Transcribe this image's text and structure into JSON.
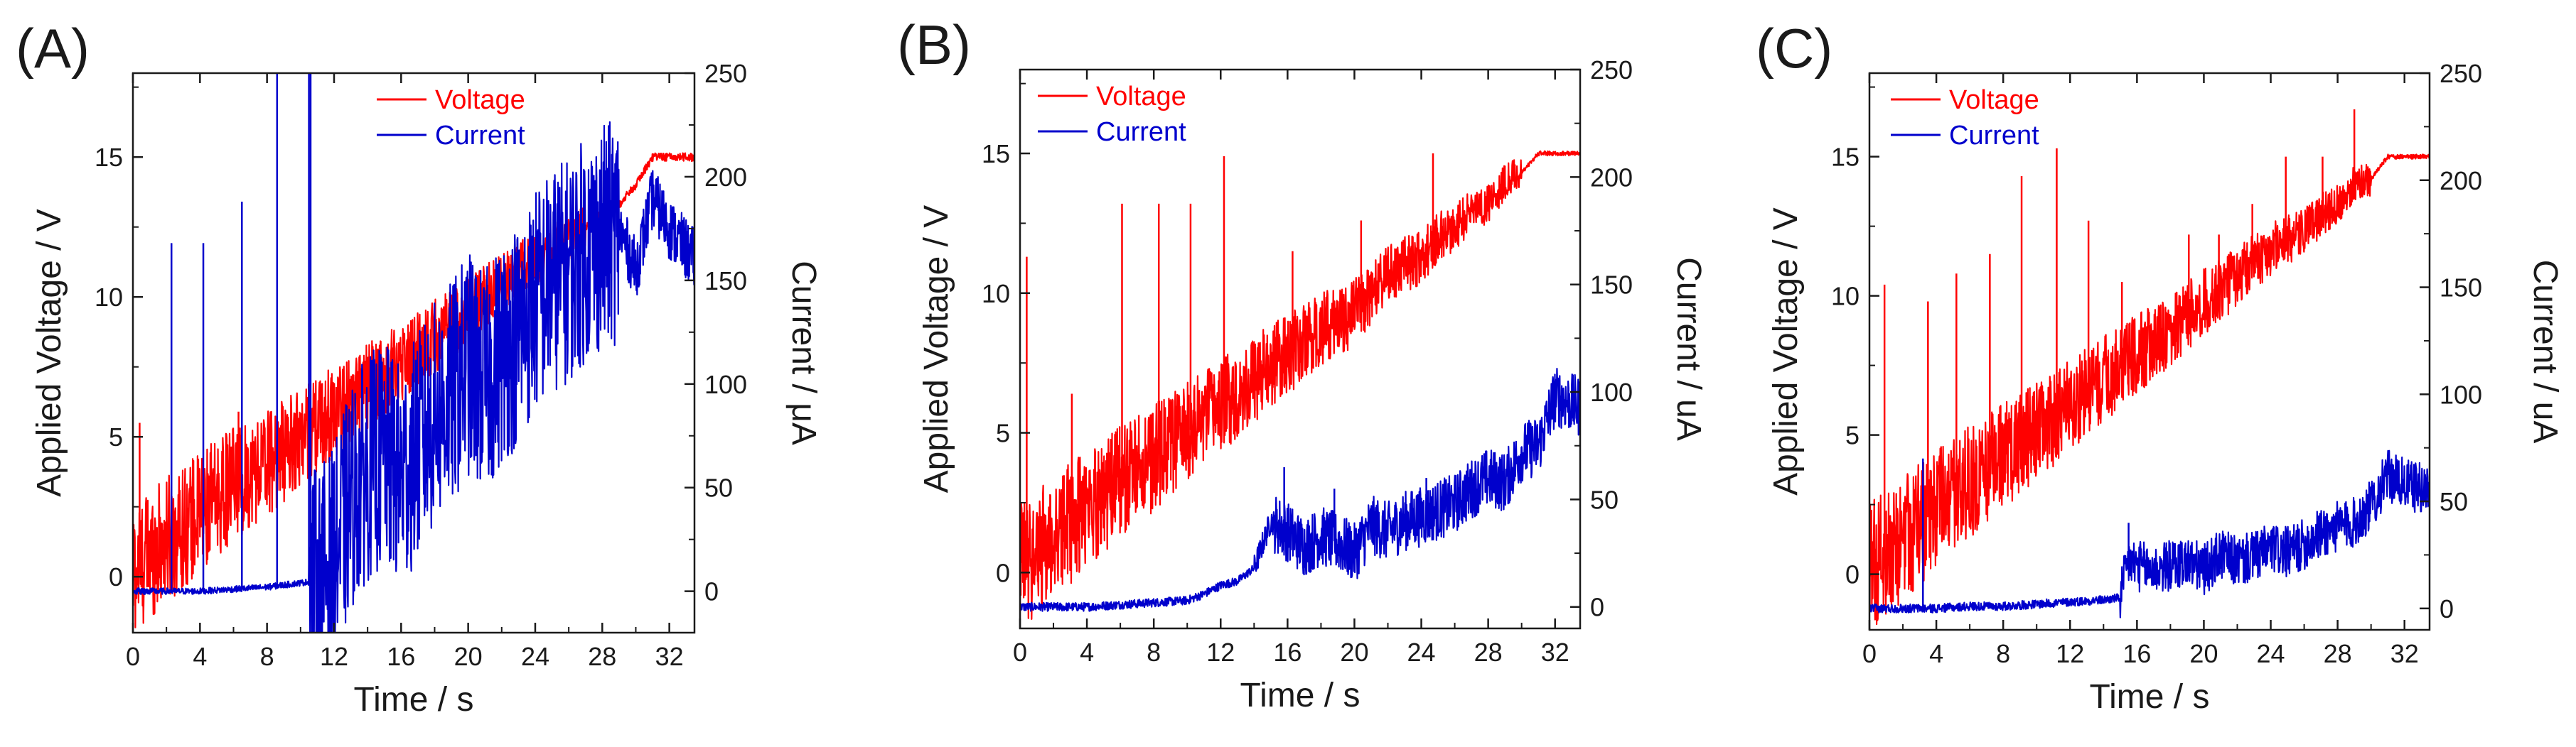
{
  "colors": {
    "voltage": "#ff0000",
    "current": "#0000cc",
    "axis": "#1a1a1a"
  },
  "chart_data": [
    {
      "panel_label": "(A)",
      "type": "line",
      "xlabel": "Time / s",
      "ylabel_left": "Applied Voltage / V",
      "ylabel_right": "Current / μA",
      "xlim": [
        0,
        33.5
      ],
      "ylim_left": [
        -2,
        18
      ],
      "ylim_right": [
        -20,
        250
      ],
      "xticks": [
        "0",
        "4",
        "8",
        "12",
        "16",
        "20",
        "24",
        "28",
        "32"
      ],
      "yticks_left": [
        "0",
        "5",
        "10",
        "15"
      ],
      "yticks_right": [
        "0",
        "50",
        "100",
        "150",
        "200",
        "250"
      ],
      "legend": [
        "Voltage",
        "Current"
      ],
      "series": [
        {
          "name": "Voltage",
          "axis": "left",
          "x": [
            0,
            1,
            2,
            3,
            4,
            5,
            6,
            7,
            8,
            9,
            10,
            11,
            12,
            13,
            14,
            15,
            16,
            17,
            18,
            19,
            20,
            21,
            22,
            23,
            24,
            25,
            26,
            27,
            28,
            29,
            30,
            31,
            32,
            33.5
          ],
          "values": [
            0.2,
            0.8,
            1.3,
            1.8,
            2.3,
            2.8,
            3.3,
            3.7,
            4.1,
            4.5,
            5,
            5.4,
            5.9,
            6.3,
            6.8,
            7.2,
            7.7,
            8.1,
            8.6,
            9,
            9.5,
            10,
            10.5,
            11,
            11.2,
            11.8,
            12,
            12.5,
            13,
            13.3,
            14,
            15,
            15,
            15
          ]
        },
        {
          "name": "Current",
          "axis": "right",
          "x": [
            0,
            2,
            4,
            6,
            8,
            9,
            10,
            11,
            12,
            13,
            14,
            15,
            16,
            17,
            18,
            19,
            20,
            21,
            22,
            23,
            24,
            25,
            26,
            27,
            28,
            29,
            30,
            31,
            32,
            33.5
          ],
          "values": [
            0,
            0,
            0,
            1,
            2,
            3,
            4,
            5,
            15,
            45,
            60,
            65,
            55,
            70,
            85,
            95,
            110,
            100,
            115,
            125,
            140,
            150,
            155,
            165,
            170,
            175,
            155,
            190,
            175,
            160
          ]
        }
      ],
      "spikes": [
        {
          "axis": "right",
          "x": 2.3,
          "value": 168
        },
        {
          "axis": "right",
          "x": 4.2,
          "value": 168
        },
        {
          "axis": "right",
          "x": 6.5,
          "value": 188
        },
        {
          "axis": "right",
          "x": 8.6,
          "value": 250
        },
        {
          "axis": "right",
          "x": 10.5,
          "value": 250
        },
        {
          "axis": "right",
          "x": 10.6,
          "value": 250
        },
        {
          "axis": "left",
          "x": 0.4,
          "value": 5.5
        },
        {
          "axis": "left",
          "x": 6.3,
          "value": 5.9
        }
      ]
    },
    {
      "panel_label": "(B)",
      "type": "line",
      "xlabel": "Time / s",
      "ylabel_left": "Applied Voltage / V",
      "ylabel_right": "Current / uA",
      "xlim": [
        0,
        33.5
      ],
      "ylim_left": [
        -2,
        18
      ],
      "ylim_right": [
        -10,
        250
      ],
      "xticks": [
        "0",
        "4",
        "8",
        "12",
        "16",
        "20",
        "24",
        "28",
        "32"
      ],
      "yticks_left": [
        "0",
        "5",
        "10",
        "15"
      ],
      "yticks_right": [
        "0",
        "50",
        "100",
        "150",
        "200",
        "250"
      ],
      "legend": [
        "Voltage",
        "Current"
      ],
      "series": [
        {
          "name": "Voltage",
          "axis": "left",
          "x": [
            0,
            1,
            2,
            3,
            4,
            5,
            6,
            7,
            8,
            9,
            10,
            11,
            12,
            13,
            14,
            15,
            16,
            17,
            18,
            19,
            20,
            21,
            22,
            23,
            24,
            25,
            26,
            27,
            28,
            29,
            30,
            31,
            32,
            33.5
          ],
          "values": [
            0.1,
            0.7,
            1.2,
            1.8,
            2.3,
            2.8,
            3.3,
            3.7,
            4.1,
            4.6,
            5,
            5.5,
            6,
            6.4,
            6.9,
            7.4,
            7.8,
            8.2,
            8.7,
            9,
            9.3,
            10,
            10.6,
            11,
            11.3,
            12,
            12.3,
            13,
            13.2,
            14,
            14.3,
            15,
            15,
            15
          ]
        },
        {
          "name": "Current",
          "axis": "right",
          "x": [
            0,
            2,
            4,
            6,
            8,
            10,
            11,
            12,
            13,
            14,
            15,
            16,
            17,
            18,
            19,
            20,
            21,
            22,
            23,
            24,
            25,
            26,
            27,
            28,
            29,
            30,
            31,
            32,
            33.5
          ],
          "values": [
            0,
            0,
            0,
            1,
            2,
            3,
            6,
            10,
            12,
            18,
            40,
            35,
            28,
            33,
            30,
            25,
            38,
            35,
            40,
            42,
            45,
            48,
            55,
            60,
            58,
            72,
            75,
            98,
            93
          ]
        }
      ],
      "spikes": [
        {
          "axis": "left",
          "x": 0.4,
          "value": 11.3
        },
        {
          "axis": "left",
          "x": 1.8,
          "value": 2.8
        },
        {
          "axis": "left",
          "x": 3.1,
          "value": 6.4
        },
        {
          "axis": "left",
          "x": 6.1,
          "value": 13.2
        },
        {
          "axis": "left",
          "x": 8.3,
          "value": 13.2
        },
        {
          "axis": "left",
          "x": 10.2,
          "value": 13.2
        },
        {
          "axis": "left",
          "x": 12.2,
          "value": 14.9
        },
        {
          "axis": "left",
          "x": 16.3,
          "value": 11.5
        },
        {
          "axis": "left",
          "x": 20.4,
          "value": 12.6
        },
        {
          "axis": "left",
          "x": 24.7,
          "value": 15
        },
        {
          "axis": "right",
          "x": 15.8,
          "value": 65
        },
        {
          "axis": "right",
          "x": 18.8,
          "value": 55
        },
        {
          "axis": "right",
          "x": 24.3,
          "value": 60
        }
      ]
    },
    {
      "panel_label": "(C)",
      "type": "line",
      "xlabel": "Time / s",
      "ylabel_left": "Applied Voltage / V",
      "ylabel_right": "Current / uA",
      "xlim": [
        0,
        33.5
      ],
      "ylim_left": [
        -2,
        18
      ],
      "ylim_right": [
        -10,
        250
      ],
      "xticks": [
        "0",
        "4",
        "8",
        "12",
        "16",
        "20",
        "24",
        "28",
        "32"
      ],
      "yticks_left": [
        "0",
        "5",
        "10",
        "15"
      ],
      "yticks_right": [
        "0",
        "50",
        "100",
        "150",
        "200",
        "250"
      ],
      "legend": [
        "Voltage",
        "Current"
      ],
      "series": [
        {
          "name": "Voltage",
          "axis": "left",
          "x": [
            0,
            1,
            2,
            3,
            4,
            5,
            6,
            7,
            8,
            9,
            10,
            11,
            12,
            13,
            14,
            15,
            16,
            17,
            18,
            19,
            20,
            21,
            22,
            23,
            24,
            25,
            26,
            27,
            28,
            29,
            30,
            31,
            32,
            33.5
          ],
          "values": [
            0.1,
            0.8,
            1.3,
            1.8,
            2.3,
            2.8,
            3.3,
            3.8,
            4.2,
            4.7,
            5.1,
            5.6,
            6.1,
            6.5,
            7,
            7.4,
            7.9,
            8.3,
            8.8,
            9.3,
            9.8,
            10.2,
            10.7,
            11.2,
            11.7,
            12,
            12.3,
            12.9,
            13.3,
            14,
            14.2,
            15,
            15,
            15
          ]
        },
        {
          "name": "Current",
          "axis": "right",
          "x": [
            0,
            2,
            4,
            6,
            8,
            10,
            12,
            14,
            15,
            15.5,
            16,
            17,
            18,
            19,
            20,
            21,
            22,
            23,
            24,
            25,
            26,
            27,
            28,
            29,
            30,
            31,
            32,
            33.5
          ],
          "values": [
            0,
            0,
            0,
            1,
            1,
            2,
            3,
            4,
            5,
            22,
            20,
            18,
            20,
            22,
            18,
            25,
            22,
            24,
            28,
            26,
            30,
            35,
            38,
            40,
            48,
            62,
            58,
            55
          ]
        }
      ],
      "spikes": [
        {
          "axis": "left",
          "x": 0.9,
          "value": 10.4
        },
        {
          "axis": "left",
          "x": 3.5,
          "value": 9.8
        },
        {
          "axis": "left",
          "x": 5.2,
          "value": 10.8
        },
        {
          "axis": "left",
          "x": 7.2,
          "value": 11.5
        },
        {
          "axis": "left",
          "x": 9.1,
          "value": 14.3
        },
        {
          "axis": "left",
          "x": 11.2,
          "value": 15.3
        },
        {
          "axis": "left",
          "x": 13.1,
          "value": 12.7
        },
        {
          "axis": "left",
          "x": 15.1,
          "value": 10.5
        },
        {
          "axis": "left",
          "x": 19.1,
          "value": 12.2
        },
        {
          "axis": "left",
          "x": 20.9,
          "value": 12.2
        },
        {
          "axis": "left",
          "x": 22.9,
          "value": 13.3
        },
        {
          "axis": "left",
          "x": 24.9,
          "value": 15
        },
        {
          "axis": "left",
          "x": 27.1,
          "value": 15
        },
        {
          "axis": "left",
          "x": 29.0,
          "value": 16.7
        },
        {
          "axis": "right",
          "x": 3.2,
          "value": 70
        },
        {
          "axis": "right",
          "x": 15.5,
          "value": 40
        }
      ]
    }
  ]
}
